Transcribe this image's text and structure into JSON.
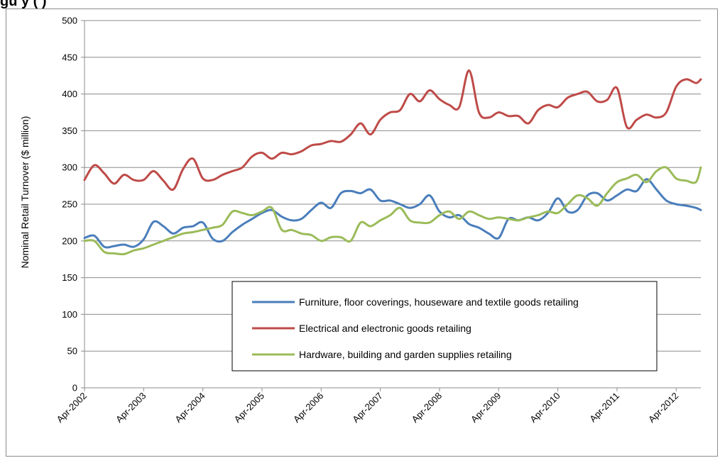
{
  "figure_title": "gu                  y                         (                )",
  "chart_data": {
    "type": "line",
    "title": "",
    "xlabel": "",
    "ylabel": "Nominal Retail Turnover ($ million)",
    "ylim": [
      0,
      500
    ],
    "yticks": [
      0,
      50,
      100,
      150,
      200,
      250,
      300,
      350,
      400,
      450,
      500
    ],
    "x_tick_labels": [
      "Apr-2002",
      "Apr-2003",
      "Apr-2004",
      "Apr-2005",
      "Apr-2006",
      "Apr-2007",
      "Apr-2008",
      "Apr-2009",
      "Apr-2010",
      "Apr-2011",
      "Apr-2012"
    ],
    "x_start": "Apr-2002",
    "x_end": "Sep-2012",
    "grid": "horizontal",
    "legend_position": "lower-right",
    "series": [
      {
        "name": "Furniture, floor coverings, houseware and textile goods retailing",
        "color": "#4a7ebb",
        "x": [
          "Apr-2002",
          "Jun-2002",
          "Aug-2002",
          "Oct-2002",
          "Dec-2002",
          "Feb-2003",
          "Apr-2003",
          "Jun-2003",
          "Aug-2003",
          "Oct-2003",
          "Dec-2003",
          "Feb-2004",
          "Apr-2004",
          "Jun-2004",
          "Aug-2004",
          "Oct-2004",
          "Dec-2004",
          "Feb-2005",
          "Apr-2005",
          "Jun-2005",
          "Aug-2005",
          "Oct-2005",
          "Dec-2005",
          "Feb-2006",
          "Apr-2006",
          "Jun-2006",
          "Aug-2006",
          "Oct-2006",
          "Dec-2006",
          "Feb-2007",
          "Apr-2007",
          "Jun-2007",
          "Aug-2007",
          "Oct-2007",
          "Dec-2007",
          "Feb-2008",
          "Apr-2008",
          "Jun-2008",
          "Aug-2008",
          "Oct-2008",
          "Dec-2008",
          "Feb-2009",
          "Apr-2009",
          "Jun-2009",
          "Aug-2009",
          "Oct-2009",
          "Dec-2009",
          "Feb-2010",
          "Apr-2010",
          "Jun-2010",
          "Aug-2010",
          "Oct-2010",
          "Dec-2010",
          "Feb-2011",
          "Apr-2011",
          "Jun-2011",
          "Aug-2011",
          "Oct-2011",
          "Dec-2011",
          "Feb-2012",
          "Apr-2012",
          "Jun-2012",
          "Aug-2012",
          "Sep-2012"
        ],
        "values": [
          204,
          207,
          192,
          193,
          195,
          192,
          202,
          226,
          220,
          210,
          218,
          220,
          225,
          203,
          200,
          212,
          222,
          230,
          238,
          242,
          233,
          228,
          230,
          242,
          252,
          245,
          265,
          268,
          265,
          270,
          255,
          255,
          250,
          245,
          250,
          262,
          240,
          232,
          235,
          223,
          218,
          210,
          204,
          230,
          228,
          232,
          228,
          238,
          258,
          240,
          242,
          262,
          265,
          255,
          262,
          270,
          268,
          284,
          270,
          255,
          250,
          248,
          245,
          242
        ]
      },
      {
        "name": "Electrical and electronic goods retailing",
        "color": "#be4b48",
        "x": [
          "Apr-2002",
          "Jun-2002",
          "Aug-2002",
          "Oct-2002",
          "Dec-2002",
          "Feb-2003",
          "Apr-2003",
          "Jun-2003",
          "Aug-2003",
          "Oct-2003",
          "Dec-2003",
          "Feb-2004",
          "Apr-2004",
          "Jun-2004",
          "Aug-2004",
          "Oct-2004",
          "Dec-2004",
          "Feb-2005",
          "Apr-2005",
          "Jun-2005",
          "Aug-2005",
          "Oct-2005",
          "Dec-2005",
          "Feb-2006",
          "Apr-2006",
          "Jun-2006",
          "Aug-2006",
          "Oct-2006",
          "Dec-2006",
          "Feb-2007",
          "Apr-2007",
          "Jun-2007",
          "Aug-2007",
          "Oct-2007",
          "Dec-2007",
          "Feb-2008",
          "Apr-2008",
          "Jun-2008",
          "Aug-2008",
          "Oct-2008",
          "Dec-2008",
          "Feb-2009",
          "Apr-2009",
          "Jun-2009",
          "Aug-2009",
          "Oct-2009",
          "Dec-2009",
          "Feb-2010",
          "Apr-2010",
          "Jun-2010",
          "Aug-2010",
          "Oct-2010",
          "Dec-2010",
          "Feb-2011",
          "Apr-2011",
          "Jun-2011",
          "Aug-2011",
          "Oct-2011",
          "Dec-2011",
          "Feb-2012",
          "Apr-2012",
          "Jun-2012",
          "Aug-2012",
          "Sep-2012"
        ],
        "values": [
          283,
          303,
          292,
          278,
          290,
          283,
          283,
          295,
          282,
          270,
          298,
          312,
          285,
          283,
          290,
          295,
          300,
          315,
          320,
          312,
          320,
          318,
          322,
          330,
          332,
          336,
          335,
          345,
          360,
          345,
          365,
          375,
          378,
          400,
          390,
          405,
          393,
          385,
          382,
          432,
          375,
          368,
          375,
          370,
          370,
          360,
          378,
          385,
          382,
          395,
          400,
          403,
          390,
          392,
          408,
          355,
          365,
          372,
          368,
          375,
          410,
          420,
          415,
          420
        ]
      },
      {
        "name": "Hardware, building and garden supplies retailing",
        "color": "#9bbb59",
        "x": [
          "Apr-2002",
          "Jun-2002",
          "Aug-2002",
          "Oct-2002",
          "Dec-2002",
          "Feb-2003",
          "Apr-2003",
          "Jun-2003",
          "Aug-2003",
          "Oct-2003",
          "Dec-2003",
          "Feb-2004",
          "Apr-2004",
          "Jun-2004",
          "Aug-2004",
          "Oct-2004",
          "Dec-2004",
          "Feb-2005",
          "Apr-2005",
          "Jun-2005",
          "Aug-2005",
          "Oct-2005",
          "Dec-2005",
          "Feb-2006",
          "Apr-2006",
          "Jun-2006",
          "Aug-2006",
          "Oct-2006",
          "Dec-2006",
          "Feb-2007",
          "Apr-2007",
          "Jun-2007",
          "Aug-2007",
          "Oct-2007",
          "Dec-2007",
          "Feb-2008",
          "Apr-2008",
          "Jun-2008",
          "Aug-2008",
          "Oct-2008",
          "Dec-2008",
          "Feb-2009",
          "Apr-2009",
          "Jun-2009",
          "Aug-2009",
          "Oct-2009",
          "Dec-2009",
          "Feb-2010",
          "Apr-2010",
          "Jun-2010",
          "Aug-2010",
          "Oct-2010",
          "Dec-2010",
          "Feb-2011",
          "Apr-2011",
          "Jun-2011",
          "Aug-2011",
          "Oct-2011",
          "Dec-2011",
          "Feb-2012",
          "Apr-2012",
          "Jun-2012",
          "Aug-2012",
          "Sep-2012"
        ],
        "values": [
          200,
          200,
          185,
          183,
          182,
          187,
          190,
          195,
          200,
          205,
          210,
          212,
          215,
          218,
          222,
          240,
          238,
          235,
          240,
          245,
          215,
          215,
          210,
          208,
          200,
          205,
          205,
          200,
          225,
          220,
          228,
          235,
          245,
          228,
          225,
          225,
          235,
          240,
          230,
          240,
          235,
          230,
          232,
          230,
          228,
          232,
          235,
          240,
          238,
          250,
          262,
          258,
          248,
          265,
          280,
          285,
          290,
          280,
          295,
          300,
          285,
          282,
          280,
          300
        ]
      }
    ]
  }
}
